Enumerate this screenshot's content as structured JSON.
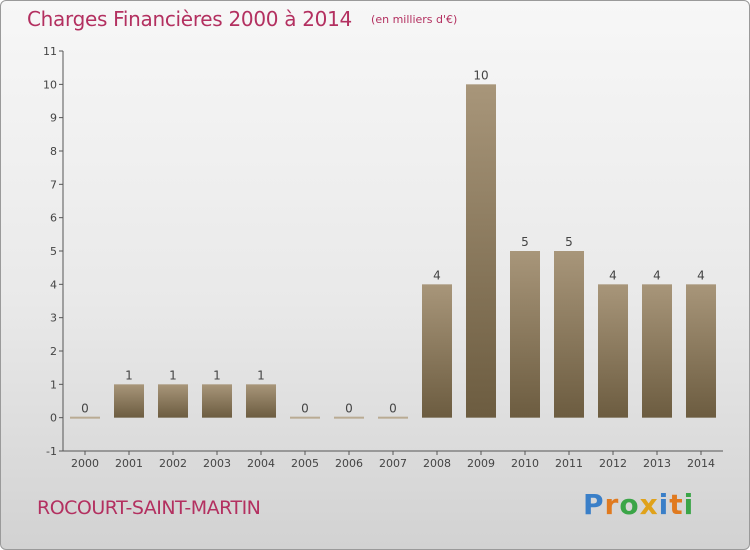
{
  "title": "Charges Financières 2000 à 2014",
  "subtitle": "(en milliers d'€)",
  "commune": "ROCOURT-SAINT-MARTIN",
  "logo": {
    "letters": [
      {
        "char": "P",
        "color": "#3a7fc8"
      },
      {
        "char": "r",
        "color": "#e07a1f"
      },
      {
        "char": "o",
        "color": "#3aa547"
      },
      {
        "char": "x",
        "color": "#e0a21a"
      },
      {
        "char": "i",
        "color": "#3a7fc8"
      },
      {
        "char": "t",
        "color": "#e07a1f"
      },
      {
        "char": "i",
        "color": "#3aa547"
      }
    ]
  },
  "chart_data": {
    "type": "bar",
    "categories": [
      "2000",
      "2001",
      "2002",
      "2003",
      "2004",
      "2005",
      "2006",
      "2007",
      "2008",
      "2009",
      "2010",
      "2011",
      "2012",
      "2013",
      "2014"
    ],
    "values": [
      0,
      1,
      1,
      1,
      1,
      0,
      0,
      0,
      4,
      10,
      5,
      5,
      4,
      4,
      4
    ],
    "data_labels": [
      "0",
      "1",
      "1",
      "1",
      "1",
      "0",
      "0",
      "0",
      "4",
      "10",
      "5",
      "5",
      "4",
      "4",
      "4"
    ],
    "y_ticks": [
      {
        "value": -1,
        "label": "-1"
      },
      {
        "value": 0,
        "label": "0"
      },
      {
        "value": 1,
        "label": "1"
      },
      {
        "value": 2,
        "label": "2"
      },
      {
        "value": 3,
        "label": "3"
      },
      {
        "value": 4,
        "label": "4"
      },
      {
        "value": 5,
        "label": "5"
      },
      {
        "value": 6,
        "label": "6"
      },
      {
        "value": 7,
        "label": "7"
      },
      {
        "value": 8,
        "label": "8"
      },
      {
        "value": 9,
        "label": "9"
      },
      {
        "value": 10,
        "label": "10"
      },
      {
        "value": 11,
        "label": "11"
      }
    ],
    "ylim": [
      -1,
      11
    ],
    "grid": false,
    "colors": {
      "bar_top": "#a8967a",
      "bar_bottom": "#6c5c40",
      "axis": "#555555",
      "zero_bar": "#b9ab93"
    }
  }
}
